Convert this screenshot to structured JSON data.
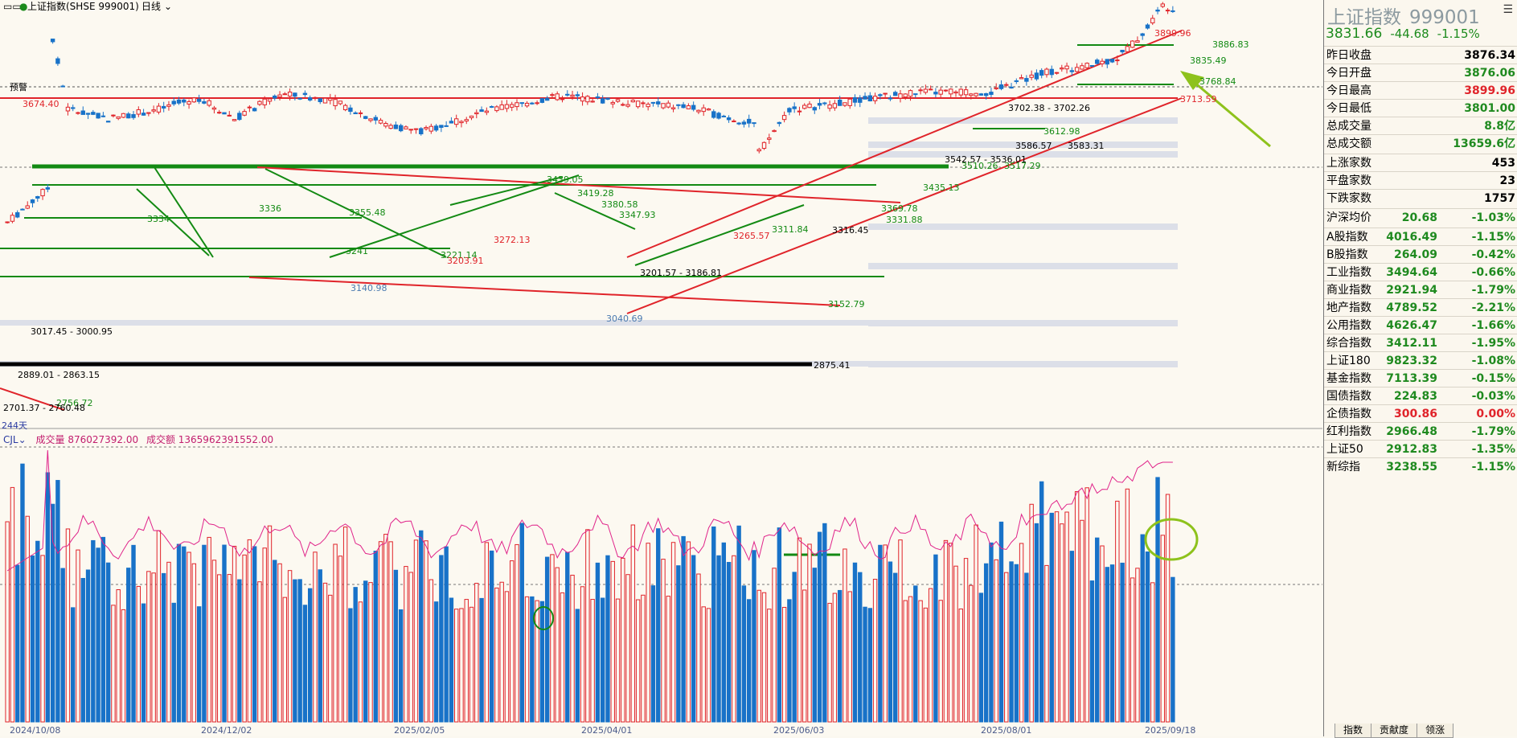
{
  "topbar": {
    "symbol_title": "上证指数(SHSE 999001)",
    "period": "日线"
  },
  "alert_label": "预警",
  "volume_header": {
    "indicator": "CJL",
    "volume_text": "成交量 876027392.00",
    "amount_text": "成交额 1365962391552.00"
  },
  "x_axis_labels": [
    "2024/10/08",
    "2024/12/02",
    "2025/02/05",
    "2025/04/01",
    "2025/06/03",
    "2025/08/01",
    "2025/09/18"
  ],
  "chart_annotations": [
    "3899.96",
    "3886.83",
    "3835.49",
    "3768.84",
    "3713.59",
    "3674.40",
    "3702.38 - 3702.26",
    "3612.98",
    "3583.31",
    "3586.57",
    "3542.57 - 3536.01",
    "3517.29",
    "3510.26",
    "3439.05",
    "3435.13",
    "3419.28",
    "3380.58",
    "3369.78",
    "3355.48",
    "3347.93",
    "3334",
    "3336",
    "3331.88",
    "3316.45",
    "3311.84",
    "3272.13",
    "3265.57",
    "3221.14",
    "3241",
    "3203.91",
    "3201.57 - 3186.81",
    "3152.79",
    "3140.98",
    "3040.69",
    "3017.45 - 3000.95",
    "2889.01 - 2863.15",
    "2875.41",
    "2756.72",
    "2701.37 - 2760.48",
    "244天"
  ],
  "right_panel": {
    "title": "上证指数",
    "code": "999001",
    "price": "3831.66",
    "change": "-44.68",
    "change_pct": "-1.15%",
    "stats": [
      {
        "label": "昨日收盘",
        "value": "3876.34",
        "color": "black"
      },
      {
        "label": "今日开盘",
        "value": "3876.06",
        "color": "green"
      },
      {
        "label": "今日最高",
        "value": "3899.96",
        "color": "red"
      },
      {
        "label": "今日最低",
        "value": "3801.00",
        "color": "green"
      },
      {
        "label": "总成交量",
        "value": "8.8亿",
        "color": "green"
      },
      {
        "label": "总成交额",
        "value": "13659.6亿",
        "color": "green"
      }
    ],
    "breadth": [
      {
        "label": "上涨家数",
        "value": "453",
        "color": "black"
      },
      {
        "label": "平盘家数",
        "value": "23",
        "color": "black"
      },
      {
        "label": "下跌家数",
        "value": "1757",
        "color": "black"
      }
    ],
    "avg": {
      "label": "沪深均价",
      "value": "20.68",
      "pct": "-1.03%"
    },
    "indices": [
      {
        "label": "A股指数",
        "value": "4016.49",
        "pct": "-1.15%",
        "color": "green"
      },
      {
        "label": "B股指数",
        "value": "264.09",
        "pct": "-0.42%",
        "color": "green"
      },
      {
        "label": "工业指数",
        "value": "3494.64",
        "pct": "-0.66%",
        "color": "green"
      },
      {
        "label": "商业指数",
        "value": "2921.94",
        "pct": "-1.79%",
        "color": "green"
      },
      {
        "label": "地产指数",
        "value": "4789.52",
        "pct": "-2.21%",
        "color": "green"
      },
      {
        "label": "公用指数",
        "value": "4626.47",
        "pct": "-1.66%",
        "color": "green"
      },
      {
        "label": "综合指数",
        "value": "3412.11",
        "pct": "-1.95%",
        "color": "green"
      },
      {
        "label": "上证180",
        "value": "9823.32",
        "pct": "-1.08%",
        "color": "green"
      },
      {
        "label": "基金指数",
        "value": "7113.39",
        "pct": "-0.15%",
        "color": "green"
      },
      {
        "label": "国债指数",
        "value": "224.83",
        "pct": "-0.03%",
        "color": "green"
      },
      {
        "label": "企债指数",
        "value": "300.86",
        "pct": "0.00%",
        "color": "red"
      },
      {
        "label": "红利指数",
        "value": "2966.48",
        "pct": "-1.79%",
        "color": "green"
      },
      {
        "label": "上证50",
        "value": "2912.83",
        "pct": "-1.35%",
        "color": "green"
      },
      {
        "label": "新综指",
        "value": "3238.55",
        "pct": "-1.15%",
        "color": "green"
      }
    ]
  },
  "bottom_tabs": [
    "指数",
    "贡献度",
    "领涨"
  ],
  "colors": {
    "up": "#e0242a",
    "down": "#1872c8",
    "green_line": "#1a8a1a",
    "red_line": "#e0242a",
    "amount_line": "#e0248a"
  }
}
